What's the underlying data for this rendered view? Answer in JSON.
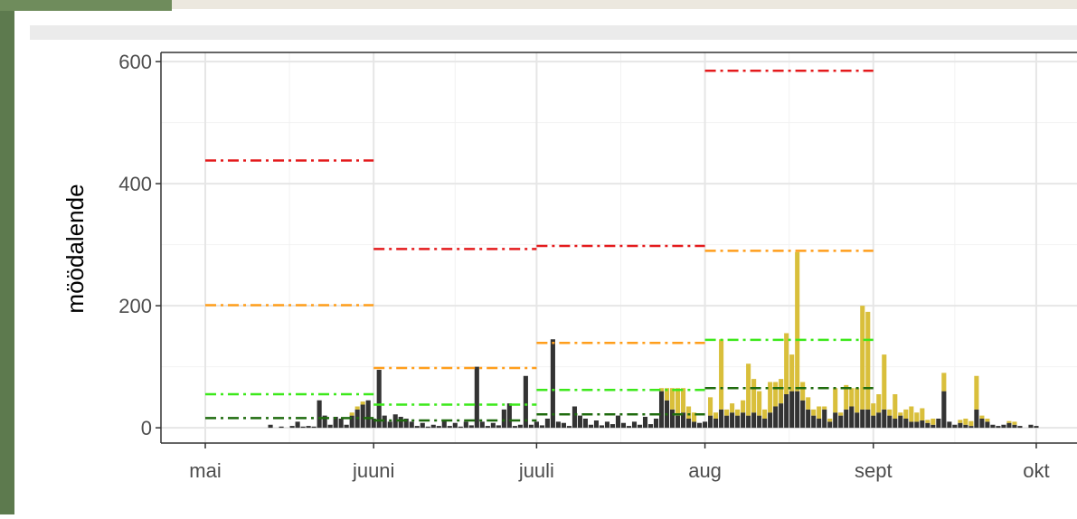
{
  "chart_data": {
    "type": "bar",
    "y_label": "möödalende",
    "xlim": [
      -8.16,
      160.5
    ],
    "xticks": [
      {
        "value": 0,
        "label": "mai"
      },
      {
        "value": 31,
        "label": "juuni"
      },
      {
        "value": 61,
        "label": "juuli"
      },
      {
        "value": 92,
        "label": "aug"
      },
      {
        "value": 123,
        "label": "sept"
      },
      {
        "value": 153,
        "label": "okt"
      }
    ],
    "x_minor_ticks": [
      15.5,
      46,
      76.5,
      107.5,
      138
    ],
    "ylim": [
      -25,
      615
    ],
    "yticks": [
      0,
      200,
      400,
      600
    ],
    "y_minor_ticks": [
      100,
      300,
      500
    ],
    "grid": true,
    "x": [
      0,
      1,
      2,
      3,
      4,
      5,
      6,
      7,
      8,
      9,
      10,
      11,
      12,
      13,
      14,
      15,
      16,
      17,
      18,
      19,
      20,
      21,
      22,
      23,
      24,
      25,
      26,
      27,
      28,
      29,
      30,
      31,
      32,
      33,
      34,
      35,
      36,
      37,
      38,
      39,
      40,
      41,
      42,
      43,
      44,
      45,
      46,
      47,
      48,
      49,
      50,
      51,
      52,
      53,
      54,
      55,
      56,
      57,
      58,
      59,
      60,
      61,
      62,
      63,
      64,
      65,
      66,
      67,
      68,
      69,
      70,
      71,
      72,
      73,
      74,
      75,
      76,
      77,
      78,
      79,
      80,
      81,
      82,
      83,
      84,
      85,
      86,
      87,
      88,
      89,
      90,
      91,
      92,
      93,
      94,
      95,
      96,
      97,
      98,
      99,
      100,
      101,
      102,
      103,
      104,
      105,
      106,
      107,
      108,
      109,
      110,
      111,
      112,
      113,
      114,
      115,
      116,
      117,
      118,
      119,
      120,
      121,
      122,
      123,
      124,
      125,
      126,
      127,
      128,
      129,
      130,
      131,
      132,
      133,
      134,
      135,
      136,
      137,
      138,
      139,
      140,
      141,
      142,
      143,
      144,
      145,
      146,
      147,
      148,
      149,
      150,
      151,
      152,
      153
    ],
    "series": [
      {
        "color": "#333333",
        "values": [
          0,
          0,
          0,
          0,
          0,
          0,
          0,
          0,
          0,
          0,
          0,
          0,
          5,
          0,
          2,
          0,
          3,
          10,
          2,
          3,
          2,
          45,
          20,
          5,
          18,
          15,
          5,
          20,
          30,
          38,
          45,
          15,
          95,
          20,
          10,
          22,
          18,
          15,
          10,
          3,
          8,
          2,
          5,
          3,
          12,
          3,
          8,
          2,
          10,
          4,
          100,
          10,
          3,
          8,
          4,
          30,
          40,
          3,
          5,
          85,
          5,
          10,
          4,
          15,
          145,
          10,
          8,
          3,
          35,
          20,
          15,
          5,
          12,
          4,
          10,
          6,
          20,
          8,
          3,
          10,
          5,
          18,
          6,
          15,
          60,
          45,
          30,
          20,
          25,
          15,
          10,
          8,
          10,
          20,
          15,
          30,
          20,
          25,
          20,
          25,
          20,
          25,
          20,
          15,
          25,
          35,
          40,
          55,
          60,
          60,
          45,
          30,
          20,
          15,
          30,
          10,
          25,
          20,
          30,
          35,
          25,
          30,
          30,
          20,
          25,
          30,
          20,
          15,
          20,
          15,
          10,
          10,
          12,
          8,
          5,
          15,
          60,
          10,
          5,
          8,
          5,
          3,
          30,
          15,
          10,
          5,
          3,
          5,
          8,
          5,
          3,
          0,
          5,
          3
        ]
      },
      {
        "color": "#d9bf3b",
        "values": [
          0,
          0,
          0,
          0,
          0,
          0,
          0,
          0,
          0,
          0,
          0,
          0,
          0,
          0,
          0,
          0,
          0,
          0,
          0,
          0,
          0,
          0,
          0,
          0,
          0,
          0,
          0,
          5,
          5,
          5,
          0,
          0,
          0,
          0,
          0,
          0,
          0,
          0,
          0,
          0,
          0,
          0,
          0,
          0,
          0,
          0,
          0,
          0,
          0,
          0,
          0,
          0,
          0,
          0,
          0,
          0,
          0,
          0,
          0,
          0,
          0,
          0,
          0,
          0,
          0,
          0,
          0,
          0,
          0,
          0,
          0,
          0,
          0,
          0,
          0,
          0,
          0,
          0,
          0,
          0,
          0,
          0,
          0,
          0,
          5,
          20,
          35,
          45,
          40,
          20,
          15,
          0,
          0,
          30,
          10,
          115,
          10,
          15,
          10,
          20,
          85,
          55,
          40,
          15,
          50,
          40,
          40,
          100,
          60,
          228,
          30,
          20,
          10,
          20,
          5,
          5,
          40,
          5,
          40,
          30,
          40,
          170,
          160,
          20,
          30,
          90,
          10,
          40,
          5,
          15,
          25,
          15,
          20,
          5,
          10,
          0,
          30,
          0,
          0,
          5,
          10,
          8,
          55,
          5,
          5,
          0,
          0,
          0,
          3,
          5,
          0,
          0,
          0,
          0
        ]
      }
    ],
    "threshold_lines": [
      {
        "color": "#e41a1c",
        "values": [
          438,
          293,
          298,
          585
        ]
      },
      {
        "color": "#ff9e1b",
        "values": [
          201,
          98,
          139,
          290
        ]
      },
      {
        "color": "#3ce81a",
        "values": [
          55,
          38,
          62,
          144
        ]
      },
      {
        "color": "#1f6b0e",
        "values": [
          16,
          12,
          22,
          65
        ]
      }
    ]
  }
}
